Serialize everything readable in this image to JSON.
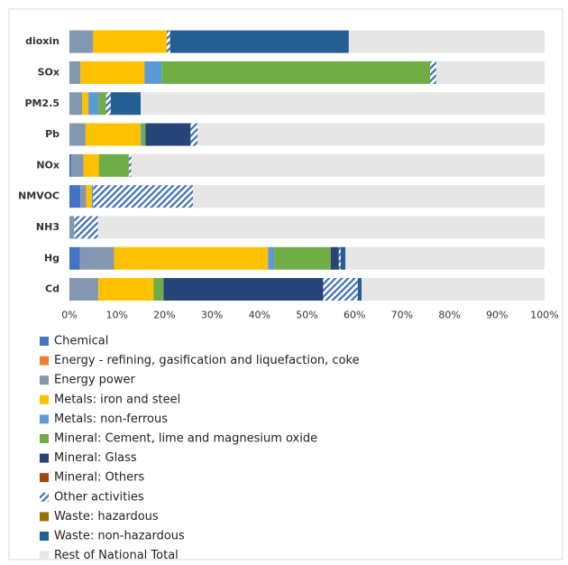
{
  "chart_data": {
    "type": "stacked-barh",
    "categories": [
      "dioxin",
      "SOx",
      "PM2.5",
      "Pb",
      "NOx",
      "NMVOC",
      "NH3",
      "Hg",
      "Cd"
    ],
    "series": [
      {
        "name": "Chemical",
        "color": "#4472c4",
        "values": [
          0,
          0,
          0,
          0,
          0.4,
          2.3,
          0,
          2.2,
          0
        ]
      },
      {
        "name": "Energy - refining, gasification and liquefaction, coke",
        "color": "#ed7d31",
        "values": [
          0,
          0,
          0,
          0,
          0,
          0,
          0,
          0,
          0
        ]
      },
      {
        "name": "Energy power",
        "color": "#8497b0",
        "values": [
          5,
          2.3,
          2.7,
          3.4,
          2.6,
          1.2,
          1,
          7.2,
          6.1
        ]
      },
      {
        "name": "Metals: iron and steel",
        "color": "#ffc000",
        "values": [
          15.5,
          13.5,
          1.3,
          11.6,
          3.2,
          1.2,
          0,
          32.4,
          11.6
        ]
      },
      {
        "name": "Metals: non-ferrous",
        "color": "#5b9bd5",
        "values": [
          0,
          3.6,
          2.1,
          0.3,
          0,
          0.3,
          0,
          1.3,
          0
        ]
      },
      {
        "name": "Mineral: Cement, lime and magnesium oxide",
        "color": "#70ad47",
        "values": [
          0,
          56.5,
          1.6,
          0.7,
          6.3,
          0,
          0,
          11.9,
          2.1
        ]
      },
      {
        "name": "Mineral: Glass",
        "color": "#264478",
        "values": [
          0,
          0,
          0,
          9.5,
          0,
          0,
          0,
          1.7,
          33.6
        ]
      },
      {
        "name": "Mineral: Others",
        "color": "#9e480e",
        "values": [
          0,
          0,
          0,
          0,
          0,
          0,
          0,
          0,
          0
        ]
      },
      {
        "name": "Other activities",
        "color": "#3d6fb6",
        "pattern": "hatch",
        "values": [
          0.7,
          1.3,
          1.0,
          1.5,
          0.5,
          21,
          5,
          0.4,
          7.3
        ]
      },
      {
        "name": "Waste: hazardous",
        "color": "#997300",
        "values": [
          0,
          0,
          0,
          0,
          0,
          0,
          0,
          0,
          0
        ]
      },
      {
        "name": "Waste: non-hazardous",
        "color": "#255e91",
        "values": [
          37.6,
          0,
          6.3,
          0,
          0,
          0,
          0,
          1.0,
          0.8
        ]
      },
      {
        "name": "Rest of National Total",
        "color": "#e7e6e6",
        "values": [
          41.2,
          22.8,
          85,
          73,
          87,
          74,
          94,
          41.9,
          38.5
        ]
      }
    ],
    "xlim": [
      0,
      100
    ],
    "xticks": [
      {
        "value": 0,
        "label": "0%"
      },
      {
        "value": 10,
        "label": "10%"
      },
      {
        "value": 20,
        "label": "20%"
      },
      {
        "value": 30,
        "label": "30%"
      },
      {
        "value": 40,
        "label": "40%"
      },
      {
        "value": 50,
        "label": "50%"
      },
      {
        "value": 60,
        "label": "60%"
      },
      {
        "value": 70,
        "label": "70%"
      },
      {
        "value": 80,
        "label": "80%"
      },
      {
        "value": 90,
        "label": "90%"
      },
      {
        "value": 100,
        "label": "100%"
      }
    ]
  }
}
